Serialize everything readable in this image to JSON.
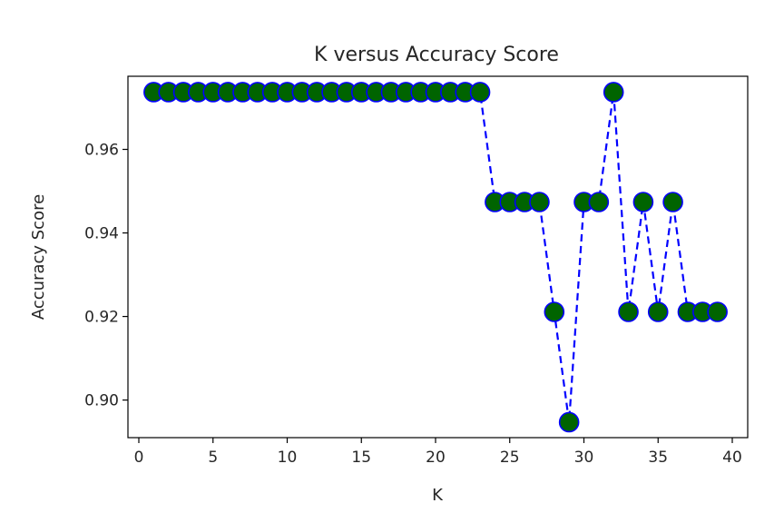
{
  "chart_data": {
    "type": "line",
    "title": "K versus Accuracy Score",
    "xlabel": "K",
    "ylabel": "Accuracy Score",
    "xlim": [
      0,
      40
    ],
    "ylim": [
      0.891,
      0.9775
    ],
    "xticks": [
      0,
      5,
      10,
      15,
      20,
      25,
      30,
      35,
      40
    ],
    "yticks": [
      0.9,
      0.92,
      0.94,
      0.96
    ],
    "ytick_labels": [
      "0.90",
      "0.92",
      "0.94",
      "0.96"
    ],
    "grid": false,
    "legend": "none",
    "line_style": "dashed",
    "line_color": "#0000ff",
    "marker": "circle",
    "marker_face_color": "#006400",
    "marker_edge_color": "#0000ff",
    "x": [
      1,
      2,
      3,
      4,
      5,
      6,
      7,
      8,
      9,
      10,
      11,
      12,
      13,
      14,
      15,
      16,
      17,
      18,
      19,
      20,
      21,
      22,
      23,
      24,
      25,
      26,
      27,
      28,
      29,
      30,
      31,
      32,
      33,
      34,
      35,
      36,
      37,
      38,
      39
    ],
    "y": [
      0.9737,
      0.9737,
      0.9737,
      0.9737,
      0.9737,
      0.9737,
      0.9737,
      0.9737,
      0.9737,
      0.9737,
      0.9737,
      0.9737,
      0.9737,
      0.9737,
      0.9737,
      0.9737,
      0.9737,
      0.9737,
      0.9737,
      0.9737,
      0.9737,
      0.9737,
      0.9737,
      0.9474,
      0.9474,
      0.9474,
      0.9474,
      0.9211,
      0.8947,
      0.9474,
      0.9474,
      0.9737,
      0.9211,
      0.9474,
      0.9211,
      0.9474,
      0.9211,
      0.9211,
      0.9211
    ]
  }
}
